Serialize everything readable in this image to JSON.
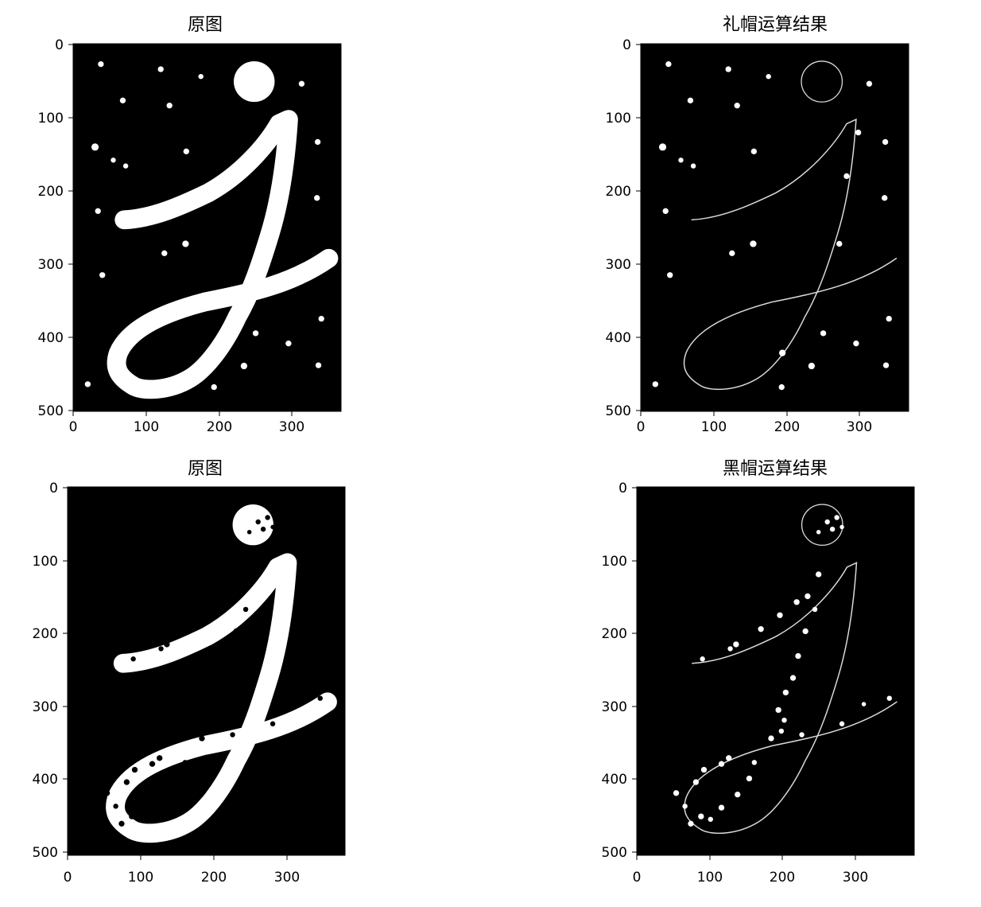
{
  "chart_data": [
    {
      "type": "image",
      "title": "原图",
      "x_ticks": [
        "0",
        "100",
        "200",
        "300"
      ],
      "y_ticks": [
        "0",
        "100",
        "200",
        "300",
        "400",
        "500"
      ],
      "xlim": [
        0,
        367
      ],
      "ylim": [
        505,
        0
      ],
      "content": "white letter j on black with scattered white dots"
    },
    {
      "type": "image",
      "title": "礼帽运算结果",
      "x_ticks": [
        "0",
        "100",
        "200",
        "300"
      ],
      "y_ticks": [
        "0",
        "100",
        "200",
        "300",
        "400",
        "500"
      ],
      "xlim": [
        0,
        367
      ],
      "ylim": [
        505,
        0
      ],
      "content": "thin outline of the letter plus the small dots"
    },
    {
      "type": "image",
      "title": "原图",
      "x_ticks": [
        "0",
        "100",
        "200",
        "300"
      ],
      "y_ticks": [
        "0",
        "100",
        "200",
        "300",
        "400",
        "500"
      ],
      "xlim": [
        0,
        380
      ],
      "ylim": [
        505,
        0
      ],
      "content": "white letter j on black with small black holes inside the stroke"
    },
    {
      "type": "image",
      "title": "黑帽运算结果",
      "x_ticks": [
        "0",
        "100",
        "200",
        "300"
      ],
      "y_ticks": [
        "0",
        "100",
        "200",
        "300",
        "400",
        "500"
      ],
      "xlim": [
        0,
        380
      ],
      "ylim": [
        505,
        0
      ],
      "content": "thin outline of the letter plus the holes shown as dots"
    }
  ]
}
